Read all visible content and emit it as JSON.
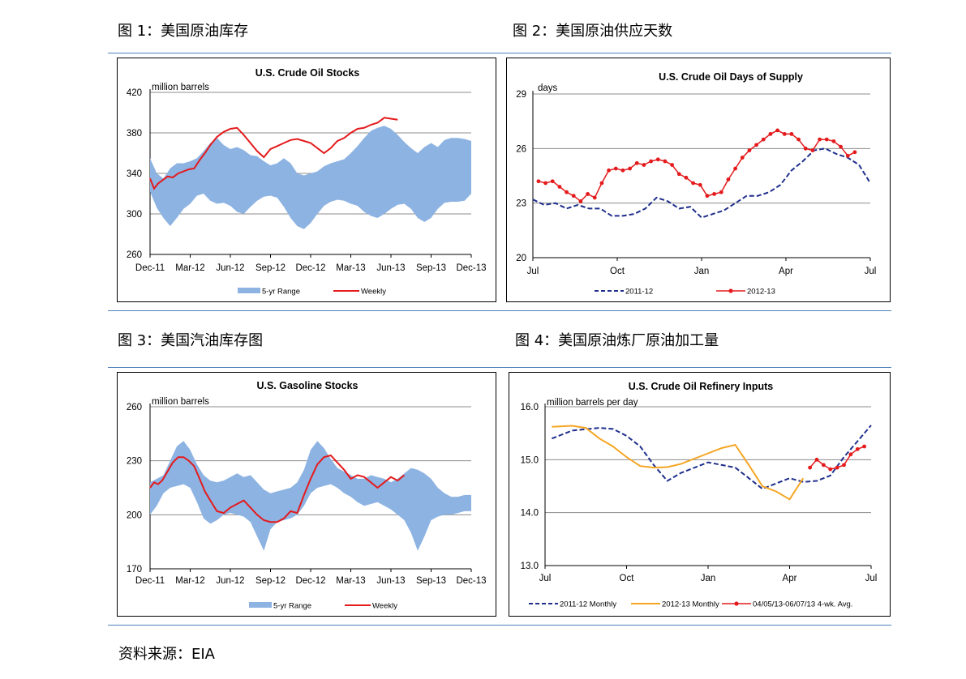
{
  "figures": [
    {
      "label": "图 1：美国原油库存"
    },
    {
      "label": "图 2：美国原油供应天数"
    },
    {
      "label": "图 3：美国汽油库存图"
    },
    {
      "label": "图 4：美国原油炼厂原油加工量"
    }
  ],
  "source": "资料来源：EIA",
  "colors": {
    "range": "#8db3e2",
    "weekly": "#e41a1c",
    "dark_blue": "#1f2f8c",
    "orange": "#f5a623",
    "rule": "#4f81bd"
  },
  "chart_data": [
    {
      "type": "area",
      "title": "U.S. Crude Oil Stocks",
      "ylabel": "million barrels",
      "ylim": [
        260,
        420
      ],
      "yticks": [
        260,
        300,
        340,
        380,
        420
      ],
      "xticks": [
        "Dec-11",
        "Mar-12",
        "Jun-12",
        "Sep-12",
        "Dec-12",
        "Mar-13",
        "Jun-13",
        "Sep-13",
        "Dec-13"
      ],
      "xlim": [
        0,
        24
      ],
      "legend": [
        "5-yr Range",
        "Weekly"
      ],
      "series": [
        {
          "name": "5-yr Range",
          "kind": "band",
          "x": [
            0,
            0.5,
            1,
            1.5,
            2,
            2.5,
            3,
            3.5,
            4,
            4.5,
            5,
            5.5,
            6,
            6.5,
            7,
            7.5,
            8,
            8.5,
            9,
            9.5,
            10,
            10.5,
            11,
            11.5,
            12,
            12.5,
            13,
            13.5,
            14,
            14.5,
            15,
            15.5,
            16,
            16.5,
            17,
            17.5,
            18,
            18.5,
            19,
            19.5,
            20,
            20.5,
            21,
            21.5,
            22,
            22.5,
            23,
            23.5,
            24
          ],
          "low": [
            322,
            306,
            296,
            288,
            296,
            305,
            310,
            318,
            320,
            313,
            310,
            311,
            308,
            302,
            300,
            307,
            313,
            317,
            318,
            316,
            307,
            296,
            288,
            285,
            291,
            300,
            308,
            312,
            314,
            313,
            310,
            308,
            302,
            298,
            296,
            300,
            305,
            309,
            310,
            305,
            296,
            292,
            296,
            305,
            311,
            312,
            312,
            313,
            320
          ],
          "high": [
            355,
            340,
            335,
            345,
            350,
            350,
            352,
            355,
            362,
            370,
            375,
            368,
            364,
            366,
            363,
            358,
            357,
            352,
            348,
            350,
            355,
            350,
            340,
            338,
            340,
            342,
            347,
            350,
            352,
            354,
            360,
            367,
            375,
            382,
            385,
            387,
            384,
            378,
            371,
            365,
            360,
            366,
            370,
            366,
            373,
            375,
            375,
            374,
            372
          ]
        },
        {
          "name": "Weekly",
          "kind": "line",
          "x": [
            0,
            0.3,
            0.6,
            0.9,
            1.3,
            1.7,
            2.1,
            2.5,
            2.9,
            3.3,
            3.7,
            4.1,
            4.5,
            5,
            5.5,
            6,
            6.5,
            7,
            7.5,
            8,
            8.5,
            9,
            9.5,
            10,
            10.5,
            11,
            11.5,
            12,
            12.5,
            13,
            13.5,
            14,
            14.5,
            15,
            15.5,
            16,
            16.5,
            17,
            17.5,
            18,
            18.5
          ],
          "y": [
            335,
            325,
            330,
            333,
            337,
            336,
            340,
            342,
            344,
            345,
            353,
            360,
            368,
            376,
            381,
            384,
            385,
            378,
            370,
            362,
            356,
            364,
            367,
            370,
            373,
            374,
            372,
            370,
            365,
            360,
            365,
            372,
            375,
            380,
            384,
            385,
            388,
            390,
            395,
            394,
            393
          ]
        }
      ]
    },
    {
      "type": "line",
      "title": "U.S. Crude Oil Days  of Supply",
      "ylabel": "days",
      "ylim": [
        20,
        29
      ],
      "yticks": [
        20,
        23,
        26,
        29
      ],
      "xticks": [
        "Jul",
        "Oct",
        "Jan",
        "Apr",
        "Jul"
      ],
      "xlim": [
        0,
        12
      ],
      "legend": [
        "2011-12",
        "2012-13"
      ],
      "series": [
        {
          "name": "2011-12",
          "kind": "dashed",
          "x": [
            0,
            0.4,
            0.8,
            1.2,
            1.6,
            2,
            2.4,
            2.8,
            3.2,
            3.6,
            4,
            4.4,
            4.8,
            5.2,
            5.6,
            6,
            6.4,
            6.8,
            7.2,
            7.6,
            8,
            8.4,
            8.8,
            9.2,
            9.6,
            10,
            10.4,
            10.8,
            11.2,
            11.6,
            12
          ],
          "y": [
            23.2,
            22.9,
            23.0,
            22.7,
            22.9,
            22.7,
            22.7,
            22.3,
            22.3,
            22.4,
            22.7,
            23.3,
            23.1,
            22.7,
            22.8,
            22.2,
            22.4,
            22.6,
            23.0,
            23.4,
            23.4,
            23.6,
            24.0,
            24.8,
            25.3,
            25.9,
            26.0,
            25.7,
            25.5,
            25.1,
            24.1
          ]
        },
        {
          "name": "2012-13",
          "kind": "markers",
          "x": [
            0.2,
            0.45,
            0.7,
            0.95,
            1.2,
            1.45,
            1.7,
            1.95,
            2.2,
            2.45,
            2.7,
            2.95,
            3.2,
            3.45,
            3.7,
            3.95,
            4.2,
            4.45,
            4.7,
            4.95,
            5.2,
            5.45,
            5.7,
            5.95,
            6.2,
            6.45,
            6.7,
            6.95,
            7.2,
            7.45,
            7.7,
            7.95,
            8.2,
            8.45,
            8.7,
            8.95,
            9.2,
            9.45,
            9.7,
            9.95,
            10.2,
            10.45,
            10.7,
            10.95,
            11.2,
            11.45
          ],
          "y": [
            24.2,
            24.1,
            24.2,
            23.9,
            23.6,
            23.4,
            23.1,
            23.5,
            23.3,
            24.1,
            24.8,
            24.9,
            24.8,
            24.9,
            25.2,
            25.1,
            25.3,
            25.4,
            25.3,
            25.1,
            24.6,
            24.4,
            24.1,
            24.0,
            23.4,
            23.5,
            23.6,
            24.3,
            24.9,
            25.5,
            25.9,
            26.2,
            26.5,
            26.8,
            27.0,
            26.8,
            26.8,
            26.5,
            26.0,
            25.9,
            26.5,
            26.5,
            26.4,
            26.1,
            25.6,
            25.8
          ]
        }
      ]
    },
    {
      "type": "area",
      "title": "U.S. Gasoline Stocks",
      "ylabel": "million barrels",
      "ylim": [
        170,
        260
      ],
      "yticks": [
        170,
        200,
        230,
        260
      ],
      "xticks": [
        "Dec-11",
        "Mar-12",
        "Jun-12",
        "Sep-12",
        "Dec-12",
        "Mar-13",
        "Jun-13",
        "Sep-13",
        "Dec-13"
      ],
      "xlim": [
        0,
        24
      ],
      "legend": [
        "5-yr Range",
        "Weekly"
      ],
      "series": [
        {
          "name": "5-yr Range",
          "kind": "band",
          "x": [
            0,
            0.5,
            1,
            1.5,
            2,
            2.5,
            3,
            3.5,
            4,
            4.5,
            5,
            5.5,
            6,
            6.5,
            7,
            7.5,
            8,
            8.5,
            9,
            9.5,
            10,
            10.5,
            11,
            11.5,
            12,
            12.5,
            13,
            13.5,
            14,
            14.5,
            15,
            15.5,
            16,
            16.5,
            17,
            17.5,
            18,
            18.5,
            19,
            19.5,
            20,
            20.5,
            21,
            21.5,
            22,
            22.5,
            23,
            23.5,
            24
          ],
          "low": [
            200,
            205,
            212,
            215,
            216,
            217,
            215,
            207,
            198,
            195,
            197,
            200,
            201,
            200,
            199,
            196,
            188,
            180,
            192,
            196,
            197,
            198,
            200,
            205,
            212,
            215,
            216,
            217,
            215,
            212,
            210,
            207,
            205,
            206,
            207,
            205,
            203,
            200,
            197,
            190,
            180,
            188,
            197,
            199,
            200,
            200,
            201,
            202,
            202
          ],
          "high": [
            218,
            220,
            222,
            230,
            238,
            241,
            236,
            228,
            222,
            219,
            218,
            219,
            221,
            223,
            221,
            222,
            218,
            214,
            212,
            213,
            214,
            215,
            218,
            225,
            236,
            241,
            237,
            231,
            226,
            224,
            222,
            220,
            220,
            222,
            221,
            220,
            218,
            220,
            223,
            226,
            225,
            223,
            220,
            215,
            212,
            210,
            210,
            211,
            211
          ]
        },
        {
          "name": "Weekly",
          "kind": "line",
          "x": [
            0,
            0.3,
            0.6,
            0.9,
            1.3,
            1.7,
            2.1,
            2.5,
            2.9,
            3.3,
            3.7,
            4.1,
            4.5,
            5,
            5.5,
            6,
            6.5,
            7,
            7.5,
            8,
            8.5,
            9,
            9.5,
            10,
            10.5,
            11,
            11.5,
            12,
            12.5,
            13,
            13.5,
            14,
            14.5,
            15,
            15.5,
            16,
            16.5,
            17,
            17.5,
            18,
            18.5,
            19
          ],
          "y": [
            215,
            218,
            217,
            219,
            224,
            229,
            232,
            232,
            230,
            227,
            220,
            213,
            208,
            202,
            201,
            204,
            206,
            208,
            204,
            200,
            197,
            196,
            196,
            198,
            202,
            201,
            211,
            220,
            228,
            232,
            233,
            229,
            225,
            220,
            222,
            221,
            218,
            215,
            218,
            221,
            219,
            222
          ]
        }
      ]
    },
    {
      "type": "line",
      "title": "U.S. Crude Oil Refinery  Inputs",
      "ylabel": "million barrels per day",
      "ylim": [
        13.0,
        16.0
      ],
      "yticks": [
        "13.0",
        "14.0",
        "15.0",
        "16.0"
      ],
      "xticks": [
        "Jul",
        "Oct",
        "Jan",
        "Apr",
        "Jul"
      ],
      "xlim": [
        0,
        12
      ],
      "legend": [
        "2011-12 Monthly",
        "2012-13 Monthly",
        "04/05/13-06/07/13  4-wk. Avg."
      ],
      "series": [
        {
          "name": "2011-12 Monthly",
          "kind": "dashed",
          "x": [
            0.25,
            1,
            2,
            2.5,
            3,
            3.5,
            4,
            4.5,
            5,
            6,
            7,
            7.5,
            8,
            8.5,
            9,
            9.5,
            10,
            10.5,
            11,
            11.5,
            12
          ],
          "y": [
            15.4,
            15.55,
            15.6,
            15.58,
            15.45,
            15.25,
            14.9,
            14.6,
            14.75,
            14.95,
            14.85,
            14.65,
            14.45,
            14.55,
            14.65,
            14.58,
            14.6,
            14.7,
            15.05,
            15.35,
            15.65
          ]
        },
        {
          "name": "2012-13 Monthly",
          "kind": "solid",
          "x": [
            0.25,
            1,
            1.5,
            2,
            2.5,
            3,
            3.5,
            4,
            4.5,
            5,
            5.5,
            6,
            6.5,
            7,
            7.5,
            8,
            8.5,
            9,
            9.5
          ],
          "y": [
            15.62,
            15.64,
            15.6,
            15.4,
            15.25,
            15.05,
            14.88,
            14.85,
            14.86,
            14.92,
            15.02,
            15.12,
            15.22,
            15.28,
            14.9,
            14.5,
            14.4,
            14.25,
            14.65
          ]
        },
        {
          "name": "04/05/13-06/07/13  4-wk. Avg.",
          "kind": "markers",
          "x": [
            9.75,
            10,
            10.25,
            10.5,
            10.75,
            11,
            11.25,
            11.5,
            11.75
          ],
          "y": [
            14.85,
            15.0,
            14.9,
            14.82,
            14.85,
            14.9,
            15.1,
            15.2,
            15.25
          ]
        }
      ]
    }
  ]
}
